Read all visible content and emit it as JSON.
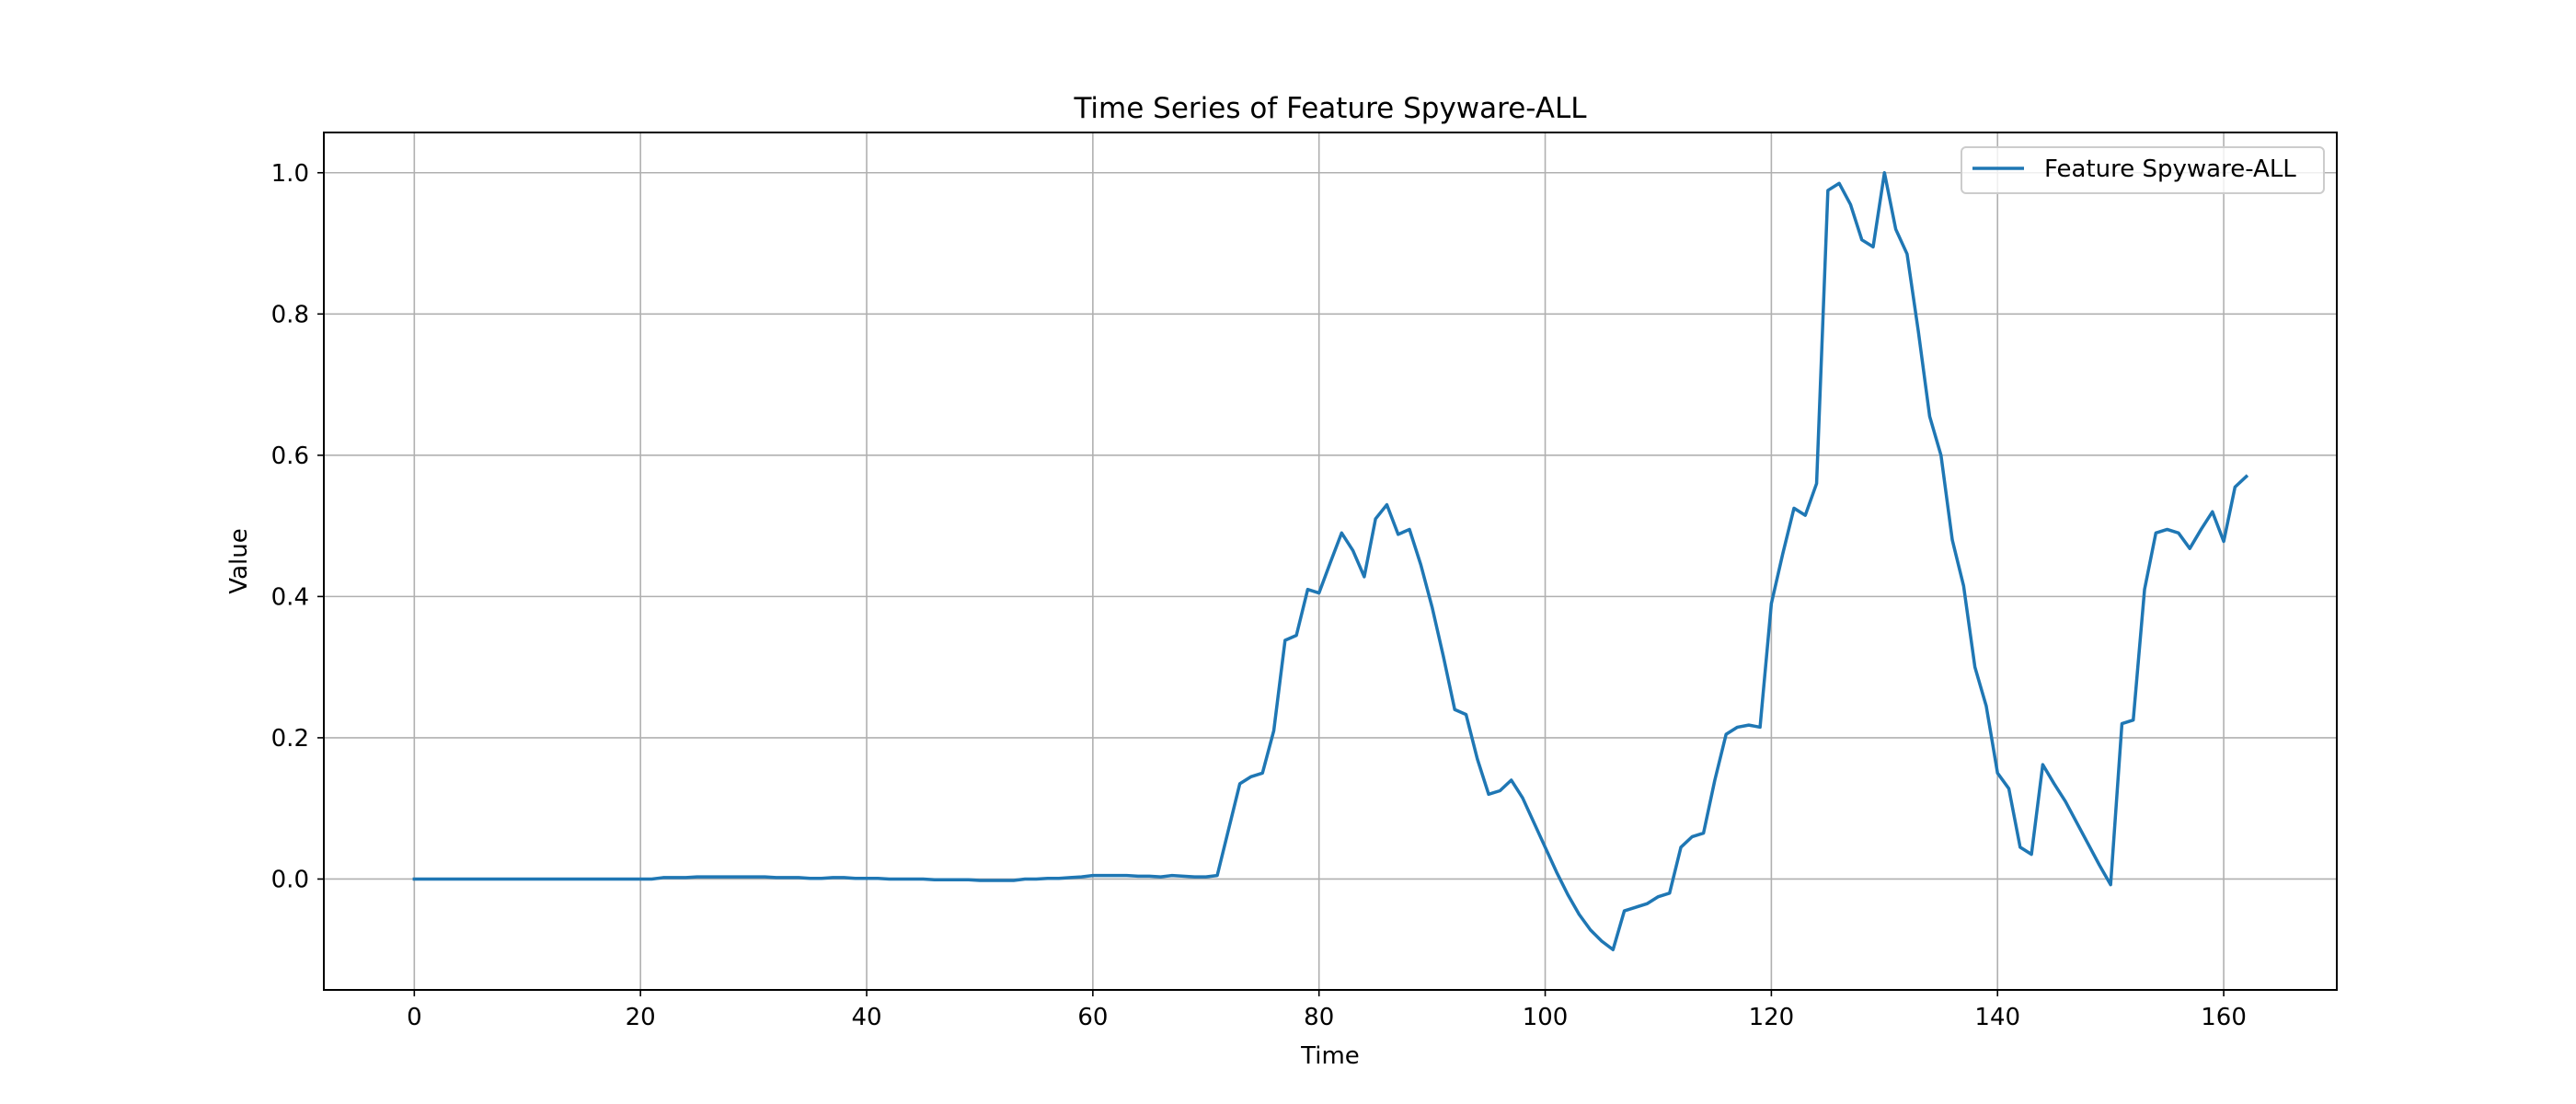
{
  "chart_data": {
    "type": "line",
    "title": "Time Series of Feature Spyware-ALL",
    "xlabel": "Time",
    "ylabel": "Value",
    "xlim": [
      -8,
      170
    ],
    "ylim": [
      -0.157,
      1.057
    ],
    "xticks": [
      0,
      20,
      40,
      60,
      80,
      100,
      120,
      140,
      160
    ],
    "yticks": [
      0.0,
      0.2,
      0.4,
      0.6,
      0.8,
      1.0
    ],
    "xtick_labels": [
      "0",
      "20",
      "40",
      "60",
      "80",
      "100",
      "120",
      "140",
      "160"
    ],
    "ytick_labels": [
      "0.0",
      "0.2",
      "0.4",
      "0.6",
      "0.8",
      "1.0"
    ],
    "grid": true,
    "legend_position": "top-right",
    "series": [
      {
        "name": "Feature Spyware-ALL",
        "color": "#1f77b4",
        "x": [
          0,
          1,
          2,
          3,
          4,
          5,
          6,
          7,
          8,
          9,
          10,
          11,
          12,
          13,
          14,
          15,
          16,
          17,
          18,
          19,
          20,
          21,
          22,
          23,
          24,
          25,
          26,
          27,
          28,
          29,
          30,
          31,
          32,
          33,
          34,
          35,
          36,
          37,
          38,
          39,
          40,
          41,
          42,
          43,
          44,
          45,
          46,
          47,
          48,
          49,
          50,
          51,
          52,
          53,
          54,
          55,
          56,
          57,
          58,
          59,
          60,
          61,
          62,
          63,
          64,
          65,
          66,
          67,
          68,
          69,
          70,
          71,
          72,
          73,
          74,
          75,
          76,
          77,
          78,
          79,
          80,
          81,
          82,
          83,
          84,
          85,
          86,
          87,
          88,
          89,
          90,
          91,
          92,
          93,
          94,
          95,
          96,
          97,
          98,
          99,
          100,
          101,
          102,
          103,
          104,
          105,
          106,
          107,
          108,
          109,
          110,
          111,
          112,
          113,
          114,
          115,
          116,
          117,
          118,
          119,
          120,
          121,
          122,
          123,
          124,
          125,
          126,
          127,
          128,
          129,
          130,
          131,
          132,
          133,
          134,
          135,
          136,
          137,
          138,
          139,
          140,
          141,
          142,
          143,
          144,
          145,
          146,
          147,
          148,
          149,
          150,
          151,
          152,
          153,
          154,
          155,
          156,
          157,
          158,
          159,
          160,
          161,
          162
        ],
        "values": [
          0.0,
          0.0,
          0.0,
          0.0,
          0.0,
          0.0,
          0.0,
          0.0,
          0.0,
          0.0,
          0.0,
          0.0,
          0.0,
          0.0,
          0.0,
          0.0,
          0.0,
          0.0,
          0.0,
          0.0,
          0.0,
          0.0,
          0.002,
          0.002,
          0.002,
          0.003,
          0.003,
          0.003,
          0.003,
          0.003,
          0.003,
          0.003,
          0.002,
          0.002,
          0.002,
          0.001,
          0.001,
          0.002,
          0.002,
          0.001,
          0.001,
          0.001,
          0.0,
          0.0,
          0.0,
          0.0,
          -0.001,
          -0.001,
          -0.001,
          -0.001,
          -0.002,
          -0.002,
          -0.002,
          -0.002,
          0.0,
          0.0,
          0.001,
          0.001,
          0.002,
          0.003,
          0.005,
          0.005,
          0.005,
          0.005,
          0.004,
          0.004,
          0.003,
          0.005,
          0.004,
          0.003,
          0.003,
          0.005,
          0.07,
          0.135,
          0.145,
          0.15,
          0.21,
          0.338,
          0.345,
          0.41,
          0.405,
          0.448,
          0.49,
          0.465,
          0.428,
          0.51,
          0.53,
          0.488,
          0.495,
          0.445,
          0.385,
          0.315,
          0.24,
          0.233,
          0.17,
          0.12,
          0.125,
          0.14,
          0.115,
          0.08,
          0.045,
          0.01,
          -0.022,
          -0.05,
          -0.072,
          -0.088,
          -0.1,
          -0.045,
          -0.04,
          -0.035,
          -0.025,
          -0.02,
          0.045,
          0.06,
          0.065,
          0.14,
          0.205,
          0.215,
          0.218,
          0.215,
          0.39,
          0.46,
          0.525,
          0.515,
          0.56,
          0.975,
          0.985,
          0.955,
          0.905,
          0.895,
          1.0,
          0.92,
          0.885,
          0.775,
          0.655,
          0.6,
          0.48,
          0.415,
          0.3,
          0.245,
          0.15,
          0.128,
          0.045,
          0.035,
          0.162,
          0.135,
          0.11,
          0.08,
          0.05,
          0.02,
          -0.008,
          0.22,
          0.225,
          0.41,
          0.49,
          0.495,
          0.49,
          0.468,
          0.495,
          0.52,
          0.478,
          0.555,
          0.57
        ]
      }
    ]
  }
}
